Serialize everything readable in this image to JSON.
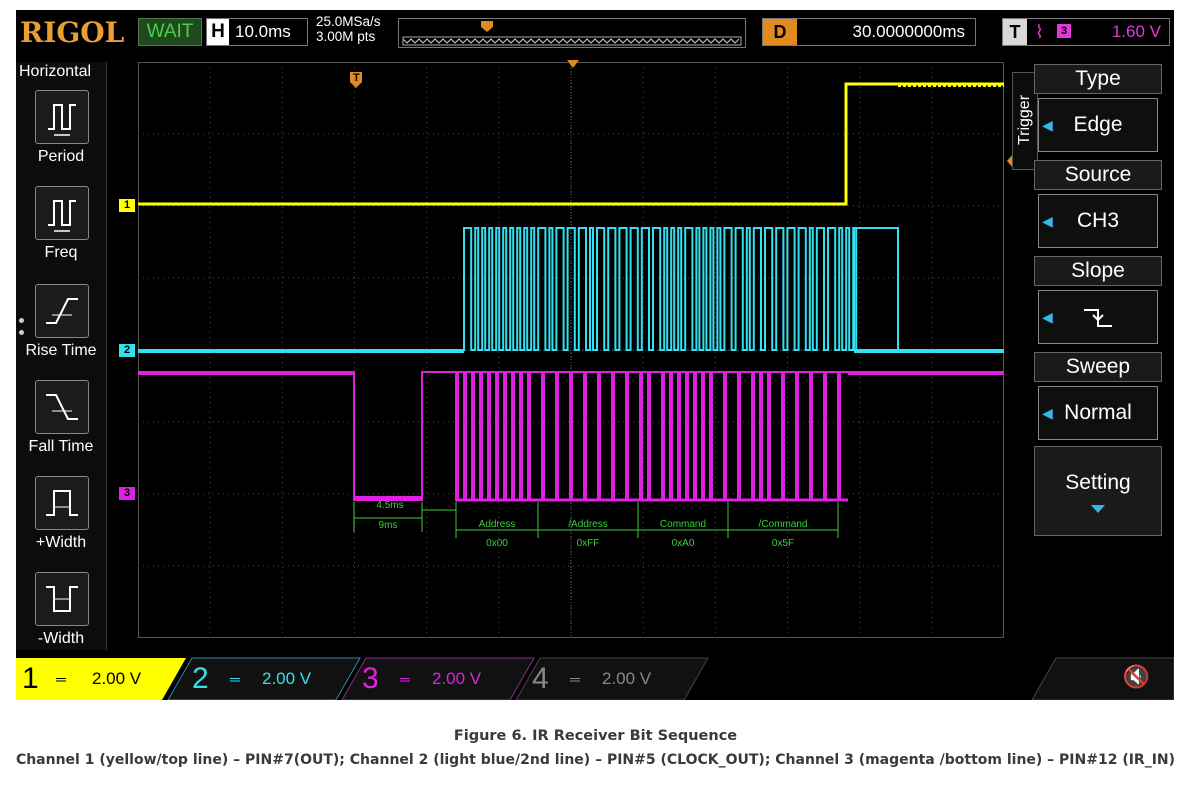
{
  "scope": {
    "brand": "RIGOL",
    "status": "WAIT",
    "horizontal": {
      "label": "H",
      "value": "10.0ms"
    },
    "sample_rate": "25.0MSa/s",
    "memory_depth": "3.00M pts",
    "delay": {
      "label": "D",
      "value": "30.0000000ms"
    },
    "trigger_status": {
      "label": "T",
      "source_num": "3",
      "level": "1.60 V"
    }
  },
  "left_menu": {
    "title": "Horizontal",
    "items": [
      {
        "label": "Period",
        "icon": "period-icon"
      },
      {
        "label": "Freq",
        "icon": "freq-icon"
      },
      {
        "label": "Rise Time",
        "icon": "rise-time-icon"
      },
      {
        "label": "Fall Time",
        "icon": "fall-time-icon"
      },
      {
        "label": "+Width",
        "icon": "pos-width-icon"
      },
      {
        "label": "-Width",
        "icon": "neg-width-icon"
      }
    ]
  },
  "right_menu": {
    "side_label": "Trigger",
    "type": {
      "label": "Type",
      "value": "Edge"
    },
    "source": {
      "label": "Source",
      "value": "CH3"
    },
    "slope": {
      "label": "Slope"
    },
    "sweep": {
      "label": "Sweep",
      "value": "Normal"
    },
    "setting": {
      "label": "Setting"
    }
  },
  "waveform_markers": {
    "ch1": "1",
    "ch2": "2",
    "ch3": "3",
    "trigger": "T"
  },
  "annotations": {
    "t1": "4.5ms",
    "t2": "9ms",
    "segments": [
      {
        "label": "Address",
        "value": "0x00"
      },
      {
        "label": "/Address",
        "value": "0xFF"
      },
      {
        "label": "Command",
        "value": "0xA0"
      },
      {
        "label": "/Command",
        "value": "0x5F"
      }
    ]
  },
  "channels": [
    {
      "num": "1",
      "scale": "2.00 V",
      "color": "#ffff00",
      "active": true
    },
    {
      "num": "2",
      "scale": "2.00 V",
      "color": "#33e0f0",
      "active": false
    },
    {
      "num": "3",
      "scale": "2.00 V",
      "color": "#e020e0",
      "active": false
    },
    {
      "num": "4",
      "scale": "2.00 V",
      "color": "#888888",
      "active": false
    }
  ],
  "caption": {
    "title": "Figure 6. IR Receiver Bit Sequence",
    "description": "Channel 1 (yellow/top line) – PIN#7(OUT); Channel 2 (light blue/2nd line) – PIN#5 (CLOCK_OUT); Channel 3 (magenta /bottom line) – PIN#12 (IR_IN)"
  }
}
